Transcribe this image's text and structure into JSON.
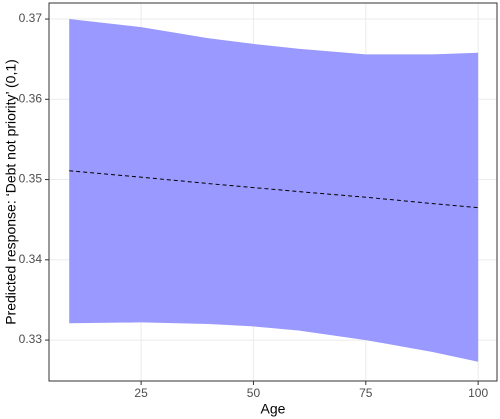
{
  "chart_data": {
    "type": "ribbon-line",
    "x_label": "Age",
    "y_label": "Predicted response: ‘Debt not priority’ (0,1)",
    "x": [
      9,
      25,
      40,
      50,
      60,
      75,
      90,
      100
    ],
    "fit": [
      0.3511,
      0.3503,
      0.3495,
      0.349,
      0.3485,
      0.3478,
      0.347,
      0.3465
    ],
    "upper": [
      0.37,
      0.369,
      0.3676,
      0.3669,
      0.3663,
      0.3656,
      0.3656,
      0.3658
    ],
    "lower": [
      0.3321,
      0.3322,
      0.332,
      0.3317,
      0.3312,
      0.33,
      0.3285,
      0.3273
    ],
    "ribbon_color": "#9999ff",
    "line_color": "#000000",
    "xlim": [
      4.5,
      104.2
    ],
    "xticks": [
      25,
      50,
      75,
      100
    ],
    "ylim": [
      0.3249,
      0.372
    ],
    "yticks": [
      0.33,
      0.34,
      0.35,
      0.36,
      0.37
    ],
    "grid": true
  }
}
